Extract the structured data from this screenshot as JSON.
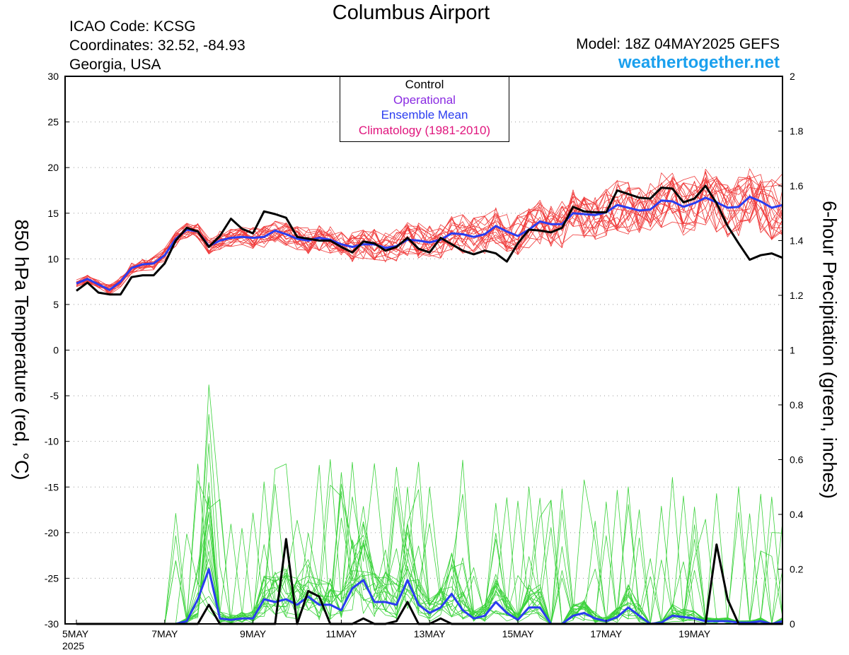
{
  "header": {
    "title": "Columbus Airport",
    "icao": "ICAO Code: KCSG",
    "coordinates": "Coordinates: 32.52, -84.93",
    "region": "Georgia, USA",
    "model": "Model: 18Z 04MAY2025 GEFS",
    "site": "weathertogether.net"
  },
  "legend": [
    {
      "label": "Control",
      "color": "#000000"
    },
    {
      "label": "Operational",
      "color": "#8a2be2"
    },
    {
      "label": "Ensemble Mean",
      "color": "#2a3cf0"
    },
    {
      "label": "Climatology (1981-2010)",
      "color": "#e0157d"
    }
  ],
  "chart_data": {
    "type": "line",
    "ylabel_left": "850 hPa Temperature (red, °C)",
    "ylabel_right": "6-hour Precipitation (green, inches)",
    "temp_ylim": [
      -30,
      30
    ],
    "temp_ticks": [
      30,
      25,
      20,
      15,
      10,
      5,
      0,
      -5,
      -10,
      -15,
      -20,
      -25,
      -30
    ],
    "precip_ylim": [
      0,
      2
    ],
    "precip_ticks": [
      "2",
      "1.8",
      "1.6",
      "1.4",
      "1.2",
      "1",
      "0.8",
      "0.6",
      "0.4",
      "0.2",
      "0"
    ],
    "x_ticks": [
      {
        "step": 0,
        "label": "5MAY",
        "sub": "2025"
      },
      {
        "step": 8,
        "label": "7MAY"
      },
      {
        "step": 16,
        "label": "9MAY"
      },
      {
        "step": 24,
        "label": "11MAY"
      },
      {
        "step": 32,
        "label": "13MAY"
      },
      {
        "step": 40,
        "label": "15MAY"
      },
      {
        "step": 48,
        "label": "17MAY"
      },
      {
        "step": 56,
        "label": "19MAY"
      }
    ],
    "time_step": "6-hour steps from 00Z 5MAY 2025 (x = 0..64)",
    "colors": {
      "temp_member": "#f03a3a",
      "precip_member": "#3ad23a",
      "control": "#000000",
      "mean": "#2a3cf0"
    },
    "grid": true,
    "control_temp": [
      6.5,
      7.4,
      6.3,
      6.1,
      6.1,
      8.0,
      8.2,
      8.2,
      9.5,
      12.0,
      13.4,
      13.0,
      11.3,
      12.5,
      14.4,
      13.3,
      12.8,
      15.2,
      14.9,
      14.5,
      12.4,
      12.2,
      12.0,
      12.0,
      11.3,
      10.7,
      11.9,
      11.7,
      10.9,
      11.3,
      12.3,
      11.1,
      10.7,
      12.3,
      11.6,
      10.9,
      10.5,
      10.9,
      10.6,
      9.7,
      11.7,
      13.2,
      13.1,
      12.9,
      13.4,
      15.7,
      15.2,
      15.1,
      15.1,
      17.5,
      17.1,
      16.7,
      16.6,
      17.8,
      17.7,
      16.2,
      16.6,
      18.0,
      16.1,
      13.6,
      11.7,
      9.9,
      10.4,
      10.6,
      10.1
    ],
    "mean_temp": [
      7.3,
      7.8,
      7.2,
      6.6,
      7.5,
      9.0,
      9.4,
      9.5,
      10.4,
      12.2,
      13.2,
      13.0,
      11.4,
      12.0,
      12.3,
      12.4,
      12.3,
      12.4,
      13.1,
      12.7,
      12.2,
      12.0,
      12.3,
      12.1,
      11.6,
      11.3,
      11.6,
      11.6,
      11.2,
      11.4,
      12.1,
      12.0,
      11.8,
      12.1,
      12.8,
      12.7,
      12.4,
      12.7,
      13.6,
      13.0,
      12.5,
      13.2,
      14.1,
      13.8,
      13.8,
      15.0,
      14.9,
      14.8,
      15.1,
      15.9,
      15.6,
      15.3,
      15.4,
      16.4,
      16.3,
      15.7,
      16.1,
      16.7,
      16.2,
      15.6,
      15.7,
      16.8,
      16.3,
      15.6,
      15.9
    ],
    "control_precip": [
      0,
      0,
      0,
      0,
      0,
      0,
      0,
      0,
      0,
      0,
      0,
      0,
      0.07,
      0,
      0,
      0,
      0,
      0,
      0,
      0.31,
      0,
      0.12,
      0.1,
      0,
      0,
      0,
      0.02,
      0,
      0,
      0.01,
      0.08,
      0,
      0,
      0.02,
      0,
      0,
      0,
      0,
      0,
      0,
      0,
      0,
      0,
      0,
      0,
      0,
      0,
      0,
      0,
      0,
      0,
      0,
      0,
      0,
      0,
      0,
      0,
      0,
      0.29,
      0.09,
      0,
      0,
      0,
      0,
      0
    ],
    "mean_precip": [
      0,
      0,
      0,
      0,
      0,
      0,
      0,
      0,
      0,
      0,
      0.01,
      0.09,
      0.2,
      0.02,
      0.015,
      0.02,
      0.02,
      0.09,
      0.08,
      0.09,
      0.07,
      0.1,
      0.07,
      0.07,
      0.05,
      0.13,
      0.16,
      0.08,
      0.08,
      0.07,
      0.16,
      0.07,
      0.04,
      0.06,
      0.11,
      0.05,
      0.02,
      0.03,
      0.08,
      0.04,
      0.015,
      0.06,
      0.06,
      0,
      0,
      0.03,
      0.04,
      0.02,
      0.01,
      0.025,
      0.06,
      0.03,
      0,
      0.005,
      0.03,
      0.025,
      0.02,
      0.01,
      0.01,
      0.01,
      0.005,
      0.005,
      0.01,
      0,
      0.01
    ]
  }
}
